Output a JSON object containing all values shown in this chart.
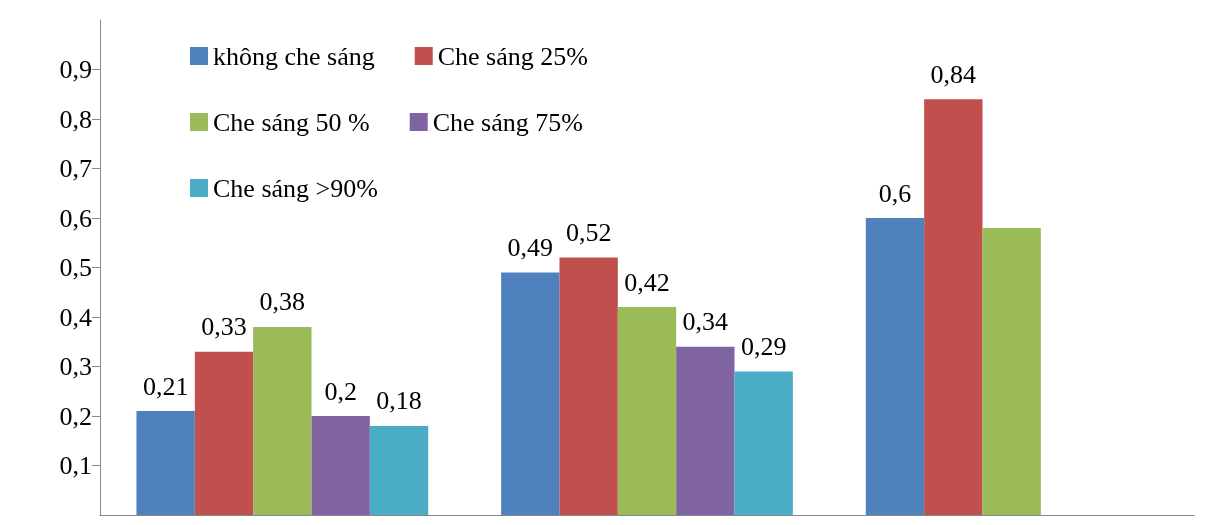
{
  "chart_data": {
    "type": "bar",
    "categories": [
      null,
      null,
      null
    ],
    "series": [
      {
        "name": "không che sáng",
        "color": "#4f81bd",
        "values": [
          0.21,
          0.49,
          0.6
        ],
        "value_labels": [
          "0,21",
          "0,49",
          "0,6"
        ]
      },
      {
        "name": "Che sáng 25%",
        "color": "#c0504d",
        "values": [
          0.33,
          0.52,
          0.84
        ],
        "value_labels": [
          "0,33",
          "0,52",
          "0,84"
        ]
      },
      {
        "name": "Che sáng 50 %",
        "color": "#9bbb59",
        "values": [
          0.38,
          0.42,
          0.58
        ],
        "value_labels": [
          "0,38",
          "0,42",
          null
        ]
      },
      {
        "name": "Che sáng 75%",
        "color": "#8064a2",
        "values": [
          0.2,
          0.34,
          null
        ],
        "value_labels": [
          "0,2",
          "0,34",
          null
        ]
      },
      {
        "name": "Che sáng >90%",
        "color": "#4bacc6",
        "values": [
          0.18,
          0.29,
          null
        ],
        "value_labels": [
          "0,18",
          "0,29",
          null
        ]
      }
    ],
    "ylim": [
      0,
      1
    ],
    "yticks": [
      {
        "value": 0.1,
        "label": "0,1"
      },
      {
        "value": 0.2,
        "label": "0,2"
      },
      {
        "value": 0.3,
        "label": "0,3"
      },
      {
        "value": 0.4,
        "label": "0,4"
      },
      {
        "value": 0.5,
        "label": "0,5"
      },
      {
        "value": 0.6,
        "label": "0,6"
      },
      {
        "value": 0.7,
        "label": "0,7"
      },
      {
        "value": 0.8,
        "label": "0,8"
      },
      {
        "value": 0.9,
        "label": "0,9"
      }
    ],
    "grid": false,
    "legend": "top left",
    "tick_labels": "y"
  }
}
